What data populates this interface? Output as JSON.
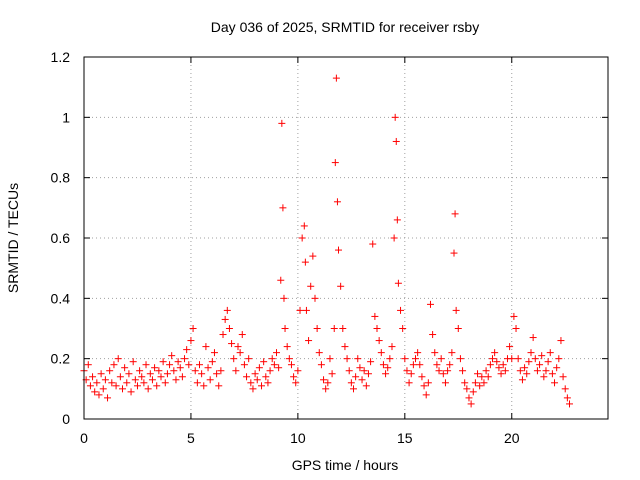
{
  "chart_data": {
    "type": "scatter",
    "title": "Day 036 of 2025, SRMTID for receiver rsby",
    "xlabel": "GPS time / hours",
    "ylabel": "SRMTID / TECUs",
    "xlim": [
      0,
      24.5
    ],
    "ylim": [
      0,
      1.2
    ],
    "x_ticks": [
      0,
      5,
      10,
      15,
      20
    ],
    "x_tick_labels": [
      "0",
      "5",
      "10",
      "15",
      "20"
    ],
    "y_ticks": [
      0,
      0.2,
      0.4,
      0.6,
      0.8,
      1.0,
      1.2
    ],
    "y_tick_labels": [
      "0",
      "0.2",
      "0.4",
      "0.6",
      "0.8",
      "1",
      "1.2"
    ],
    "grid": true,
    "marker": "+",
    "series": [
      {
        "name": "SRMTID",
        "color": "#ff0000",
        "x": [
          0.0,
          0.1,
          0.2,
          0.3,
          0.4,
          0.5,
          0.6,
          0.7,
          0.8,
          0.9,
          1.0,
          1.1,
          1.2,
          1.3,
          1.4,
          1.5,
          1.6,
          1.7,
          1.8,
          1.9,
          2.0,
          2.1,
          2.2,
          2.3,
          2.4,
          2.5,
          2.6,
          2.7,
          2.8,
          2.9,
          3.0,
          3.1,
          3.2,
          3.3,
          3.4,
          3.5,
          3.6,
          3.7,
          3.8,
          3.9,
          4.0,
          4.1,
          4.2,
          4.3,
          4.4,
          4.5,
          4.6,
          4.7,
          4.8,
          4.9,
          5.0,
          5.1,
          5.2,
          5.3,
          5.4,
          5.5,
          5.6,
          5.7,
          5.8,
          5.9,
          6.0,
          6.1,
          6.2,
          6.3,
          6.4,
          6.5,
          6.6,
          6.7,
          6.8,
          6.9,
          7.0,
          7.1,
          7.2,
          7.3,
          7.4,
          7.5,
          7.6,
          7.7,
          7.8,
          7.9,
          8.0,
          8.1,
          8.2,
          8.3,
          8.4,
          8.5,
          8.6,
          8.7,
          8.8,
          8.9,
          9.0,
          9.1,
          9.2,
          9.25,
          9.3,
          9.35,
          9.4,
          9.5,
          9.6,
          9.7,
          9.8,
          9.9,
          10.0,
          10.1,
          10.2,
          10.3,
          10.35,
          10.4,
          10.5,
          10.6,
          10.7,
          10.8,
          10.9,
          11.0,
          11.1,
          11.2,
          11.3,
          11.4,
          11.5,
          11.6,
          11.7,
          11.75,
          11.8,
          11.85,
          11.9,
          12.0,
          12.1,
          12.2,
          12.3,
          12.4,
          12.5,
          12.6,
          12.7,
          12.8,
          12.9,
          13.0,
          13.1,
          13.2,
          13.3,
          13.4,
          13.5,
          13.6,
          13.7,
          13.8,
          13.9,
          14.0,
          14.1,
          14.2,
          14.3,
          14.4,
          14.5,
          14.55,
          14.6,
          14.65,
          14.7,
          14.8,
          14.9,
          15.0,
          15.1,
          15.2,
          15.3,
          15.4,
          15.5,
          15.6,
          15.7,
          15.8,
          15.9,
          16.0,
          16.1,
          16.2,
          16.3,
          16.4,
          16.5,
          16.6,
          16.7,
          16.8,
          16.9,
          17.0,
          17.1,
          17.2,
          17.3,
          17.35,
          17.4,
          17.5,
          17.6,
          17.7,
          17.8,
          17.9,
          18.0,
          18.1,
          18.2,
          18.3,
          18.4,
          18.5,
          18.6,
          18.7,
          18.8,
          18.9,
          19.0,
          19.1,
          19.2,
          19.3,
          19.4,
          19.5,
          19.6,
          19.7,
          19.8,
          19.9,
          20.0,
          20.1,
          20.2,
          20.3,
          20.4,
          20.5,
          20.6,
          20.7,
          20.8,
          20.9,
          21.0,
          21.1,
          21.2,
          21.3,
          21.4,
          21.5,
          21.6,
          21.7,
          21.8,
          21.9,
          22.0,
          22.1,
          22.2,
          22.3,
          22.4,
          22.5,
          22.6,
          22.7
        ],
        "y": [
          0.16,
          0.13,
          0.18,
          0.11,
          0.14,
          0.09,
          0.12,
          0.08,
          0.15,
          0.1,
          0.13,
          0.07,
          0.16,
          0.12,
          0.18,
          0.11,
          0.2,
          0.14,
          0.1,
          0.17,
          0.12,
          0.15,
          0.09,
          0.19,
          0.13,
          0.11,
          0.16,
          0.14,
          0.12,
          0.18,
          0.1,
          0.15,
          0.13,
          0.17,
          0.11,
          0.16,
          0.14,
          0.19,
          0.12,
          0.15,
          0.18,
          0.21,
          0.16,
          0.13,
          0.19,
          0.17,
          0.14,
          0.2,
          0.23,
          0.18,
          0.26,
          0.3,
          0.16,
          0.12,
          0.18,
          0.15,
          0.11,
          0.24,
          0.17,
          0.13,
          0.19,
          0.22,
          0.15,
          0.11,
          0.16,
          0.28,
          0.33,
          0.36,
          0.3,
          0.25,
          0.2,
          0.16,
          0.24,
          0.22,
          0.28,
          0.18,
          0.14,
          0.2,
          0.12,
          0.1,
          0.15,
          0.13,
          0.17,
          0.11,
          0.19,
          0.14,
          0.12,
          0.16,
          0.2,
          0.18,
          0.22,
          0.17,
          0.46,
          0.98,
          0.7,
          0.4,
          0.3,
          0.24,
          0.2,
          0.18,
          0.14,
          0.12,
          0.16,
          0.36,
          0.6,
          0.64,
          0.52,
          0.36,
          0.26,
          0.44,
          0.54,
          0.4,
          0.3,
          0.22,
          0.18,
          0.13,
          0.1,
          0.12,
          0.2,
          0.15,
          0.3,
          0.85,
          1.13,
          0.72,
          0.56,
          0.44,
          0.3,
          0.24,
          0.2,
          0.16,
          0.12,
          0.1,
          0.14,
          0.2,
          0.17,
          0.13,
          0.16,
          0.11,
          0.15,
          0.19,
          0.58,
          0.34,
          0.3,
          0.26,
          0.22,
          0.18,
          0.15,
          0.17,
          0.2,
          0.24,
          0.6,
          1.0,
          0.92,
          0.66,
          0.45,
          0.36,
          0.3,
          0.2,
          0.16,
          0.12,
          0.15,
          0.18,
          0.2,
          0.22,
          0.18,
          0.14,
          0.11,
          0.08,
          0.12,
          0.38,
          0.28,
          0.22,
          0.18,
          0.16,
          0.2,
          0.15,
          0.12,
          0.16,
          0.18,
          0.22,
          0.55,
          0.68,
          0.36,
          0.3,
          0.2,
          0.16,
          0.12,
          0.1,
          0.07,
          0.05,
          0.09,
          0.12,
          0.15,
          0.11,
          0.14,
          0.12,
          0.16,
          0.14,
          0.18,
          0.2,
          0.22,
          0.19,
          0.17,
          0.15,
          0.18,
          0.16,
          0.2,
          0.24,
          0.2,
          0.34,
          0.3,
          0.2,
          0.16,
          0.13,
          0.17,
          0.15,
          0.19,
          0.22,
          0.27,
          0.2,
          0.16,
          0.18,
          0.21,
          0.14,
          0.16,
          0.19,
          0.22,
          0.15,
          0.12,
          0.17,
          0.2,
          0.26,
          0.14,
          0.1,
          0.07,
          0.05
        ]
      }
    ]
  }
}
